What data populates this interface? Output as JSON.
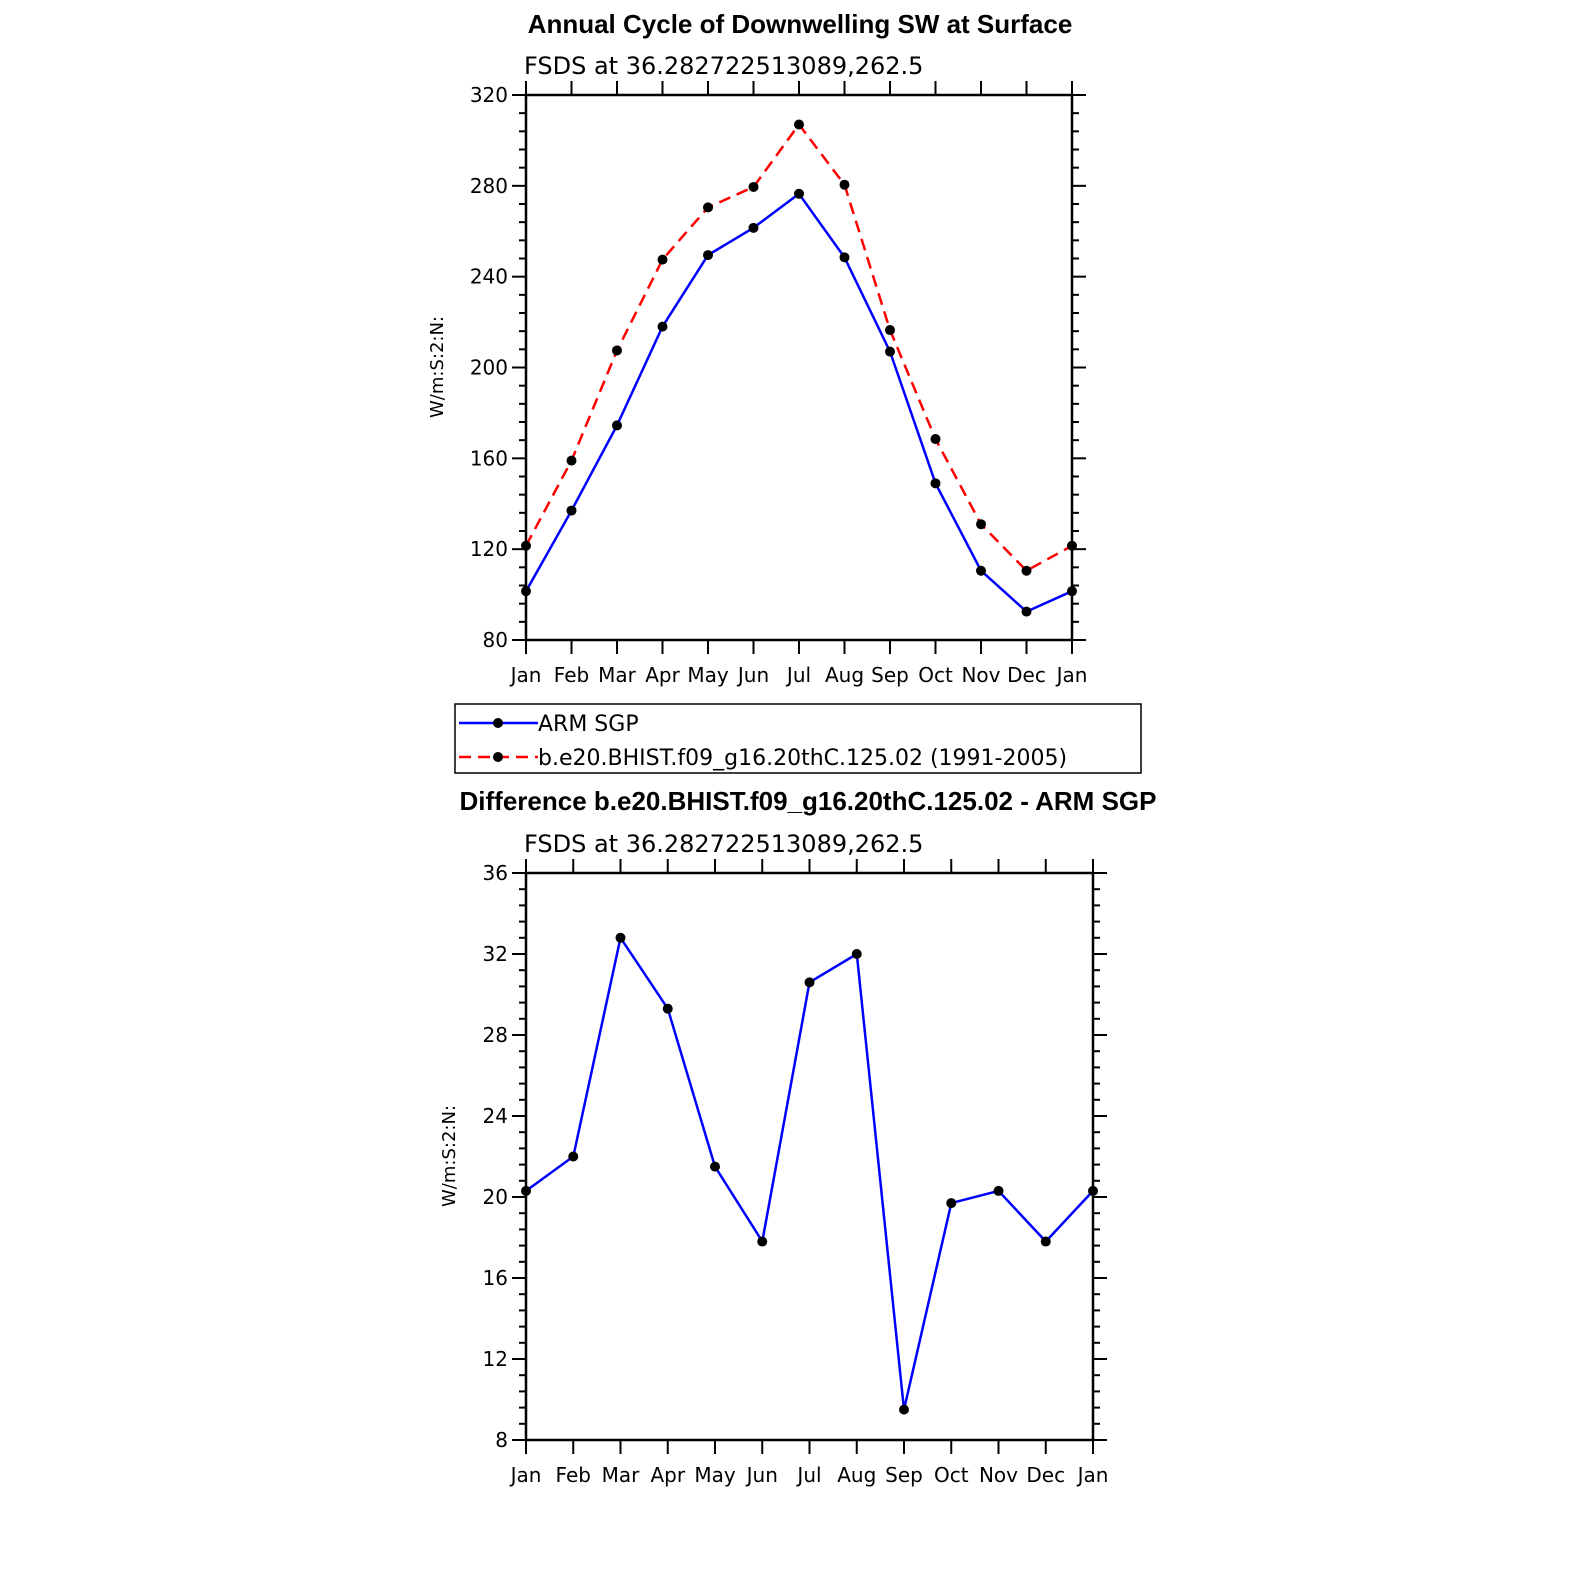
{
  "chart_data": [
    {
      "type": "line",
      "title": "Annual Cycle of Downwelling SW at Surface",
      "subtitle": "FSDS at 36.282722513089,262.5",
      "ylabel": "W/m:S:2:N:",
      "xlabel": "",
      "categories": [
        "Jan",
        "Feb",
        "Mar",
        "Apr",
        "May",
        "Jun",
        "Jul",
        "Aug",
        "Sep",
        "Oct",
        "Nov",
        "Dec",
        "Jan"
      ],
      "ylim": [
        80,
        320
      ],
      "yticks": [
        "80",
        "120",
        "160",
        "200",
        "240",
        "280",
        "320"
      ],
      "series": [
        {
          "name": "ARM SGP",
          "color": "#0000ff",
          "dash": "solid",
          "values": [
            101.5,
            137,
            174.5,
            218,
            249.5,
            261.5,
            276.5,
            248.5,
            207,
            149,
            110.5,
            92.5,
            101.5
          ]
        },
        {
          "name": "b.e20.BHIST.f09_g16.20thC.125.02 (1991-2005)",
          "color": "#ff0000",
          "dash": "dashed",
          "values": [
            121.5,
            159,
            207.5,
            247.5,
            270.5,
            279.5,
            307,
            280.5,
            216.5,
            168.5,
            131,
            110.5,
            121.5
          ]
        }
      ],
      "legend": "below"
    },
    {
      "type": "line",
      "title": "Difference b.e20.BHIST.f09_g16.20thC.125.02 - ARM SGP",
      "subtitle": "FSDS at 36.282722513089,262.5",
      "ylabel": "W/m:S:2:N:",
      "xlabel": "",
      "categories": [
        "Jan",
        "Feb",
        "Mar",
        "Apr",
        "May",
        "Jun",
        "Jul",
        "Aug",
        "Sep",
        "Oct",
        "Nov",
        "Dec",
        "Jan"
      ],
      "ylim": [
        8,
        36
      ],
      "yticks": [
        "8",
        "12",
        "16",
        "20",
        "24",
        "28",
        "32",
        "36"
      ],
      "series": [
        {
          "color": "#0000ff",
          "dash": "solid",
          "values": [
            20.3,
            22,
            32.8,
            29.3,
            21.5,
            17.8,
            30.6,
            32,
            9.5,
            19.7,
            20.3,
            17.8,
            20.3
          ]
        }
      ]
    }
  ]
}
